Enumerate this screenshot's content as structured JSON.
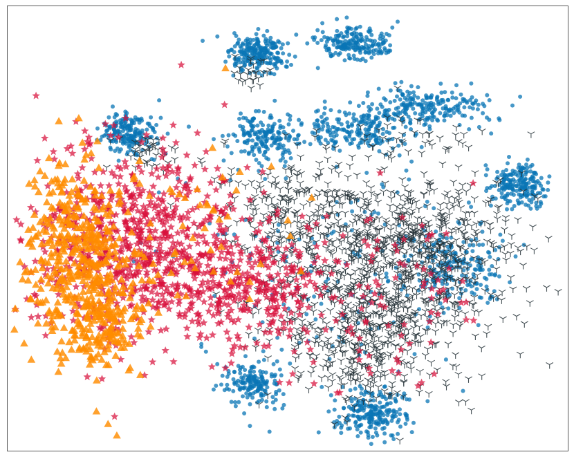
{
  "chart_data": {
    "type": "scatter",
    "title": "",
    "xlabel": "",
    "ylabel": "",
    "grid": false,
    "legend": "none",
    "axes_ticks": "none",
    "xlim": [
      0,
      100
    ],
    "ylim": [
      0,
      100
    ],
    "series": [
      {
        "marker": "circle",
        "color": "#0a75b5",
        "clusters": [
          {
            "center": [
              44.8,
              89.0
            ],
            "spread": [
              2.5,
              2.2
            ],
            "count": 230
          },
          {
            "center": [
              61.7,
              91.5
            ],
            "spread": [
              3.2,
              1.8
            ],
            "count": 200
          },
          {
            "center": [
              21.5,
              71.5
            ],
            "spread": [
              2.5,
              2.5
            ],
            "count": 190
          },
          {
            "center": [
              45.5,
              70.5
            ],
            "spread": [
              3.0,
              2.6
            ],
            "count": 180
          },
          {
            "center": [
              63.0,
              72.5
            ],
            "spread": [
              4.5,
              2.6
            ],
            "count": 200
          },
          {
            "center": [
              74.5,
              77.5
            ],
            "spread": [
              5.5,
              2.4
            ],
            "count": 220
          },
          {
            "center": [
              91.3,
              60.0
            ],
            "spread": [
              2.5,
              2.6
            ],
            "count": 210
          },
          {
            "center": [
              79.5,
              41.0
            ],
            "spread": [
              4.5,
              5.0
            ],
            "count": 220
          },
          {
            "center": [
              44.2,
              15.2
            ],
            "spread": [
              2.5,
              2.4
            ],
            "count": 170
          },
          {
            "center": [
              65.0,
              8.5
            ],
            "spread": [
              3.0,
              2.6
            ],
            "count": 220
          },
          {
            "center": [
              58.0,
              40.0
            ],
            "spread": [
              14.0,
              14.0
            ],
            "count": 160
          }
        ]
      },
      {
        "marker": "tri_down",
        "color": "#263238",
        "clusters": [
          {
            "center": [
              66.0,
              40.0
            ],
            "spread": [
              12.0,
              11.0
            ],
            "count": 900
          },
          {
            "center": [
              64.0,
              22.0
            ],
            "spread": [
              5.5,
              7.0
            ],
            "count": 220
          },
          {
            "center": [
              51.0,
              57.0
            ],
            "spread": [
              7.0,
              6.0
            ],
            "count": 180
          },
          {
            "center": [
              75.0,
              48.0
            ],
            "spread": [
              7.0,
              6.0
            ],
            "count": 200
          },
          {
            "center": [
              44.5,
              85.0
            ],
            "spread": [
              2.5,
              2.0
            ],
            "count": 25
          },
          {
            "center": [
              26.0,
              67.0
            ],
            "spread": [
              3.0,
              2.0
            ],
            "count": 40
          },
          {
            "center": [
              73.0,
              70.5
            ],
            "spread": [
              5.0,
              2.0
            ],
            "count": 30
          }
        ]
      },
      {
        "marker": "star",
        "color": "#d8103b",
        "clusters": [
          {
            "center": [
              23.0,
              47.0
            ],
            "spread": [
              10.0,
              11.0
            ],
            "count": 750
          },
          {
            "center": [
              42.0,
              37.0
            ],
            "spread": [
              7.0,
              6.0
            ],
            "count": 260
          },
          {
            "center": [
              62.0,
              35.0
            ],
            "spread": [
              12.0,
              12.0
            ],
            "count": 130
          }
        ]
      },
      {
        "marker": "triangle",
        "color": "#ff8c00",
        "clusters": [
          {
            "center": [
              12.5,
              44.0
            ],
            "spread": [
              5.0,
              11.0
            ],
            "count": 420
          },
          {
            "center": [
              17.5,
              28.0
            ],
            "spread": [
              3.5,
              4.5
            ],
            "count": 130
          },
          {
            "center": [
              30.0,
              50.0
            ],
            "spread": [
              10.0,
              10.0
            ],
            "count": 60
          }
        ]
      }
    ]
  }
}
